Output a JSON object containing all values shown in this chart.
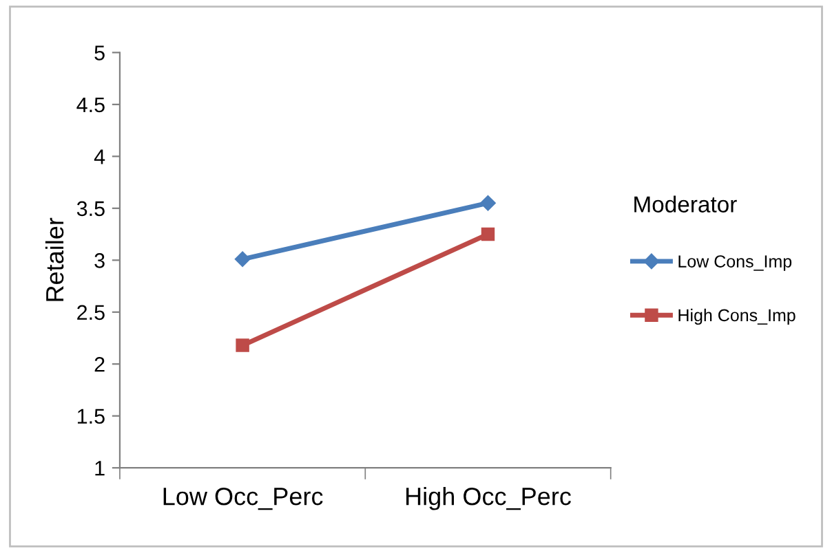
{
  "chart_data": {
    "type": "line",
    "ylabel": "Retailer",
    "legend_title": "Moderator",
    "categories": [
      "Low Occ_Perc",
      "High Occ_Perc"
    ],
    "series": [
      {
        "name": "Low Cons_Imp",
        "color": "#4a7ebb",
        "values": [
          3.01,
          3.55
        ],
        "marker": "diamond"
      },
      {
        "name": "High Cons_Imp",
        "color": "#be4b48",
        "values": [
          2.18,
          3.25
        ],
        "marker": "square"
      }
    ],
    "ylim": [
      1,
      5
    ],
    "yticks": [
      1,
      1.5,
      2,
      2.5,
      3,
      3.5,
      4,
      4.5,
      5
    ],
    "grid": false,
    "legend": "right",
    "line_style": "solid"
  }
}
